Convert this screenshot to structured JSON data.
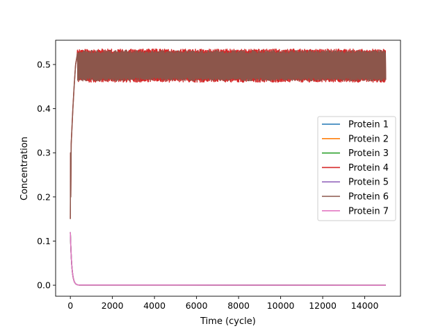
{
  "chart_data": {
    "type": "line",
    "title": "",
    "xlabel": "Time (cycle)",
    "ylabel": "Concentration",
    "xlim": [
      -700,
      15700
    ],
    "ylim": [
      -0.025,
      0.555
    ],
    "xticks": [
      0,
      2000,
      4000,
      6000,
      8000,
      10000,
      12000,
      14000
    ],
    "xtick_labels": [
      "0",
      "2000",
      "4000",
      "6000",
      "8000",
      "10000",
      "12000",
      "14000"
    ],
    "yticks": [
      0.0,
      0.1,
      0.2,
      0.3,
      0.4,
      0.5
    ],
    "ytick_labels": [
      "0.0",
      "0.1",
      "0.2",
      "0.3",
      "0.4",
      "0.5"
    ],
    "grid": false,
    "legend_position": "center-right",
    "x_end": 15000,
    "series": [
      {
        "name": "Protein 1",
        "color": "#1f77b4",
        "start": 0.12,
        "steady": 0.0,
        "band": [
          0.0,
          0.0
        ]
      },
      {
        "name": "Protein 2",
        "color": "#ff7f0e",
        "start": 0.12,
        "steady": 0.0,
        "band": [
          0.0,
          0.0
        ]
      },
      {
        "name": "Protein 3",
        "color": "#2ca02c",
        "start": 0.12,
        "steady": 0.0,
        "band": [
          0.0,
          0.0
        ]
      },
      {
        "name": "Protein 4",
        "color": "#d62728",
        "start": 0.15,
        "steady": 0.497,
        "band": [
          0.46,
          0.535
        ]
      },
      {
        "name": "Protein 5",
        "color": "#9467bd",
        "start": 0.12,
        "steady": 0.0,
        "band": [
          0.0,
          0.0
        ]
      },
      {
        "name": "Protein 6",
        "color": "#8c564b",
        "start": 0.15,
        "steady": 0.497,
        "band": [
          0.463,
          0.532
        ]
      },
      {
        "name": "Protein 7",
        "color": "#e377c2",
        "start": 0.12,
        "steady": 0.0,
        "band": [
          0.0,
          0.0
        ]
      }
    ]
  }
}
